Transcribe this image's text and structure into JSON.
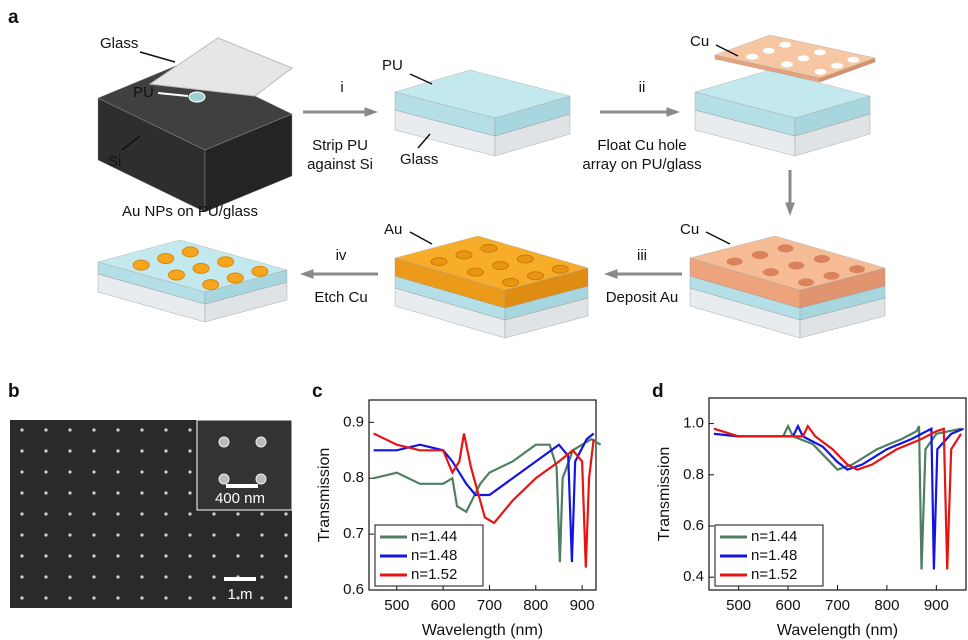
{
  "figure": {
    "panel_labels": [
      "a",
      "b",
      "c",
      "d"
    ],
    "schematic": {
      "glass": "Glass",
      "pu_1": "PU",
      "si": "Si",
      "step_1": "i",
      "step_1_text": [
        "Strip PU",
        "against Si"
      ],
      "pu_2": "PU",
      "glass_2": "Glass",
      "step_2": "ii",
      "step_2_text": [
        "Float Cu hole",
        "array on PU/glass"
      ],
      "cu_1": "Cu",
      "cu_2": "Cu",
      "step_3": "iii",
      "step_3_text": "Deposit Au",
      "au": "Au",
      "step_4": "iv",
      "step_4_text": "Etch Cu",
      "result": "Au NPs on PU/glass"
    },
    "sem": {
      "inset_scale": "400 nm",
      "scale": "1 m"
    }
  },
  "chart_data": [
    {
      "type": "line",
      "xlabel": "Wavelength (nm)",
      "ylabel": "Transmission",
      "xlim": [
        440,
        930
      ],
      "ylim": [
        0.6,
        0.94
      ],
      "xticks": [
        500,
        600,
        700,
        800,
        900
      ],
      "yticks": [
        0.6,
        0.7,
        0.8,
        0.9
      ],
      "legend": "lower left",
      "series": [
        {
          "name": "n=1.44",
          "color": "#4e8060",
          "x": [
            450,
            500,
            550,
            600,
            620,
            630,
            650,
            680,
            700,
            750,
            800,
            830,
            845,
            852,
            858,
            880,
            920,
            940
          ],
          "values": [
            0.8,
            0.81,
            0.79,
            0.79,
            0.8,
            0.75,
            0.74,
            0.79,
            0.81,
            0.83,
            0.86,
            0.86,
            0.82,
            0.65,
            0.8,
            0.85,
            0.87,
            0.86
          ]
        },
        {
          "name": "n=1.48",
          "color": "#1414e0",
          "x": [
            450,
            500,
            550,
            600,
            620,
            650,
            670,
            700,
            750,
            800,
            850,
            870,
            878,
            885,
            910,
            925
          ],
          "values": [
            0.85,
            0.85,
            0.86,
            0.85,
            0.83,
            0.79,
            0.77,
            0.77,
            0.8,
            0.83,
            0.86,
            0.84,
            0.65,
            0.83,
            0.87,
            0.88
          ]
        },
        {
          "name": "n=1.52",
          "color": "#e81414",
          "x": [
            450,
            500,
            550,
            600,
            620,
            635,
            645,
            660,
            690,
            710,
            750,
            800,
            850,
            880,
            900,
            908,
            915,
            925
          ],
          "values": [
            0.88,
            0.86,
            0.85,
            0.85,
            0.81,
            0.83,
            0.88,
            0.82,
            0.73,
            0.72,
            0.76,
            0.8,
            0.83,
            0.85,
            0.83,
            0.64,
            0.8,
            0.87
          ]
        }
      ]
    },
    {
      "type": "line",
      "xlabel": "Wavelength (nm)",
      "ylabel": "Transmission",
      "xlim": [
        440,
        960
      ],
      "ylim": [
        0.35,
        1.1
      ],
      "xticks": [
        500,
        600,
        700,
        800,
        900
      ],
      "yticks": [
        0.4,
        0.6,
        0.8,
        {
          "value": 1.0,
          "label": "1.0"
        }
      ],
      "legend": "lower left",
      "series": [
        {
          "name": "n=1.44",
          "color": "#4e8060",
          "x": [
            450,
            500,
            550,
            590,
            600,
            610,
            650,
            680,
            700,
            730,
            780,
            830,
            860,
            865,
            870,
            878,
            900,
            950
          ],
          "values": [
            0.96,
            0.95,
            0.95,
            0.95,
            0.99,
            0.95,
            0.92,
            0.86,
            0.82,
            0.84,
            0.9,
            0.94,
            0.97,
            0.99,
            0.43,
            0.9,
            0.96,
            0.98
          ]
        },
        {
          "name": "n=1.48",
          "color": "#1414e0",
          "x": [
            450,
            500,
            550,
            610,
            620,
            630,
            670,
            700,
            720,
            750,
            800,
            850,
            880,
            890,
            895,
            902,
            930,
            955
          ],
          "values": [
            0.96,
            0.95,
            0.95,
            0.95,
            0.99,
            0.95,
            0.91,
            0.85,
            0.82,
            0.84,
            0.9,
            0.94,
            0.97,
            0.98,
            0.43,
            0.9,
            0.96,
            0.98
          ]
        },
        {
          "name": "n=1.52",
          "color": "#e81414",
          "x": [
            450,
            500,
            550,
            630,
            640,
            655,
            690,
            720,
            740,
            770,
            820,
            870,
            900,
            915,
            922,
            930,
            950
          ],
          "values": [
            0.98,
            0.95,
            0.95,
            0.95,
            0.99,
            0.95,
            0.9,
            0.84,
            0.82,
            0.84,
            0.9,
            0.94,
            0.97,
            0.98,
            0.43,
            0.9,
            0.96
          ]
        }
      ]
    }
  ]
}
